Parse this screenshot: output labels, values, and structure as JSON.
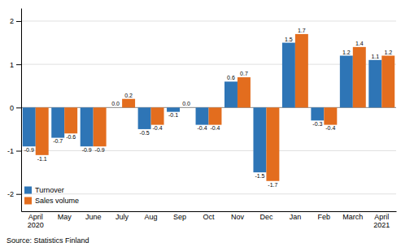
{
  "chart_data": {
    "type": "bar",
    "categories": [
      "April\n2020",
      "May",
      "June",
      "July",
      "Aug",
      "Sep",
      "Oct",
      "Nov",
      "Dec",
      "Jan",
      "Feb",
      "March",
      "April\n2021"
    ],
    "series": [
      {
        "name": "Turnover",
        "color": "#2e75b6",
        "values": [
          -0.9,
          -0.7,
          -0.9,
          0.0,
          -0.5,
          -0.1,
          -0.4,
          0.6,
          -1.5,
          1.5,
          -0.3,
          1.2,
          1.1
        ],
        "value_labels": [
          "-0.9",
          "-0.7",
          "-0.9",
          "0.0",
          "-0.5",
          "-0.1",
          "-0.4",
          "0.6",
          "-1.5",
          "1.5",
          "-0.3",
          "1.2",
          "1.1"
        ]
      },
      {
        "name": "Sales volume",
        "color": "#e36d1e",
        "values": [
          -1.1,
          -0.6,
          -0.9,
          0.2,
          -0.4,
          0.0,
          -0.4,
          0.7,
          -1.7,
          1.7,
          -0.4,
          1.4,
          1.2
        ],
        "value_labels": [
          "-1.1",
          "-0.6",
          "-0.9",
          "0.2",
          "-0.4",
          "0.0",
          "-0.4",
          "0.7",
          "-1.7",
          "1.7",
          "-0.4",
          "1.4",
          "1.2"
        ]
      }
    ],
    "ylim": [
      -2.4,
      2.3
    ],
    "yticks": [
      -2,
      -1,
      0,
      1,
      2
    ],
    "grid": true,
    "legend": "lower left",
    "data_labels": true,
    "annotations": [
      "Source: Statistics Finland"
    ]
  }
}
